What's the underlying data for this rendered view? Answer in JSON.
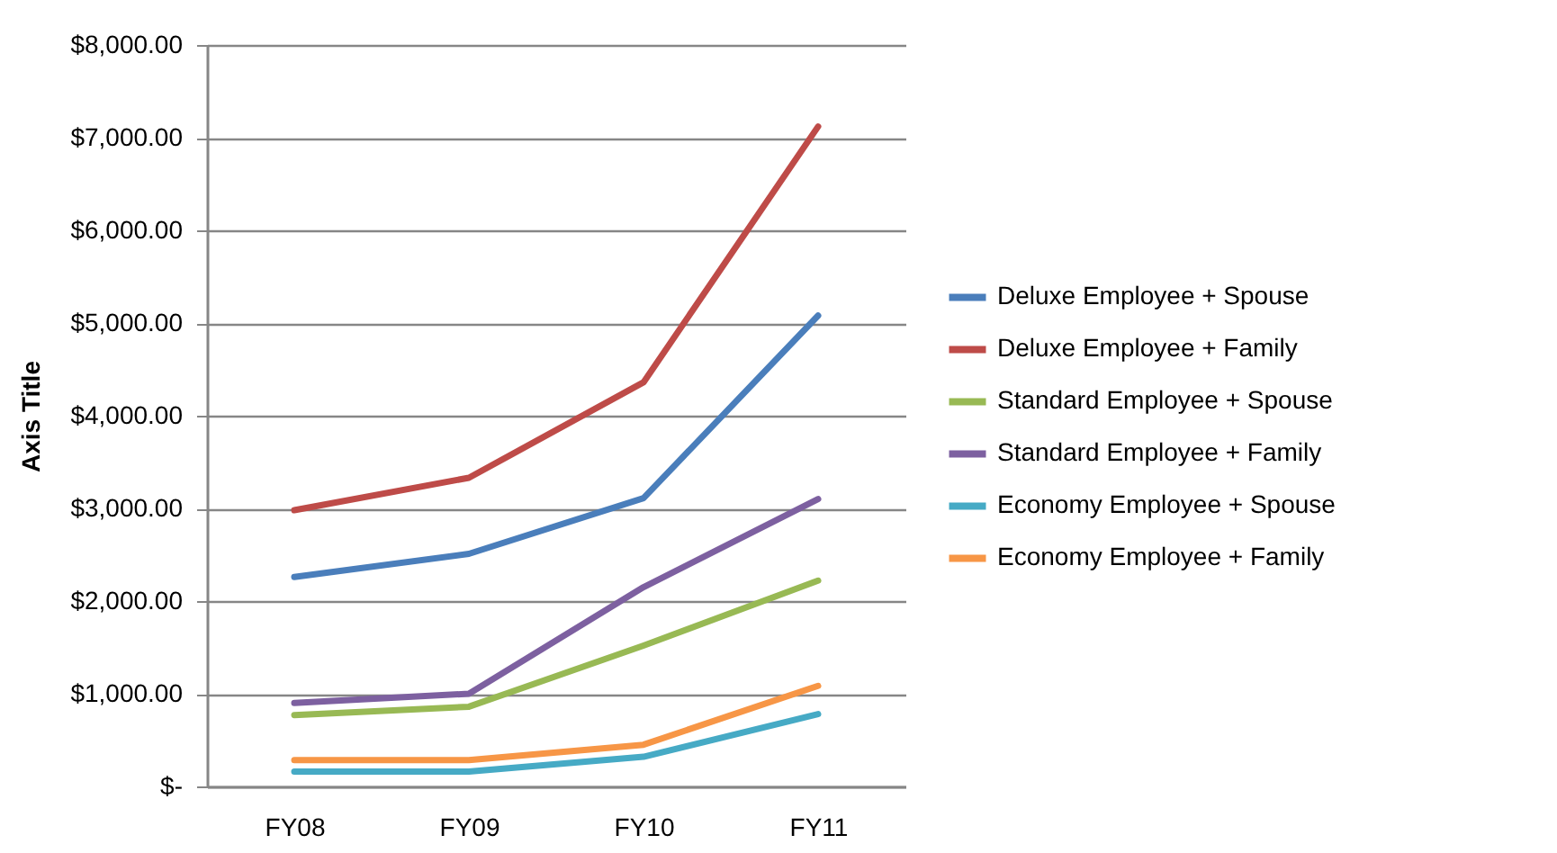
{
  "chart_data": {
    "type": "line",
    "ylabel": "Axis Title",
    "categories": [
      "FY08",
      "FY09",
      "FY10",
      "FY11"
    ],
    "ylim": [
      0,
      8000
    ],
    "yticks": [
      {
        "value": 0,
        "label": "$-"
      },
      {
        "value": 1000,
        "label": "$1,000.00"
      },
      {
        "value": 2000,
        "label": "$2,000.00"
      },
      {
        "value": 3000,
        "label": "$3,000.00"
      },
      {
        "value": 4000,
        "label": "$4,000.00"
      },
      {
        "value": 5000,
        "label": "$5,000.00"
      },
      {
        "value": 6000,
        "label": "$6,000.00"
      },
      {
        "value": 7000,
        "label": "$7,000.00"
      },
      {
        "value": 8000,
        "label": "$8,000.00"
      }
    ],
    "grid": "y",
    "legend": "right",
    "marker": "none",
    "line_style": "solid",
    "series": [
      {
        "name": "Deluxe Employee + Spouse",
        "color": "#4a7ebb",
        "values": [
          2260,
          2510,
          3110,
          5080
        ]
      },
      {
        "name": "Deluxe Employee + Family",
        "color": "#be4b48",
        "values": [
          2980,
          3330,
          4360,
          7120
        ]
      },
      {
        "name": "Standard Employee + Spouse",
        "color": "#98b954",
        "values": [
          770,
          860,
          1520,
          2220
        ]
      },
      {
        "name": "Standard Employee + Family",
        "color": "#7d60a0",
        "values": [
          900,
          1000,
          2150,
          3100
        ]
      },
      {
        "name": "Economy Employee + Spouse",
        "color": "#46aac5",
        "values": [
          160,
          160,
          320,
          780
        ]
      },
      {
        "name": "Economy Employee + Family",
        "color": "#f79646",
        "values": [
          285,
          285,
          450,
          1085
        ]
      }
    ]
  }
}
